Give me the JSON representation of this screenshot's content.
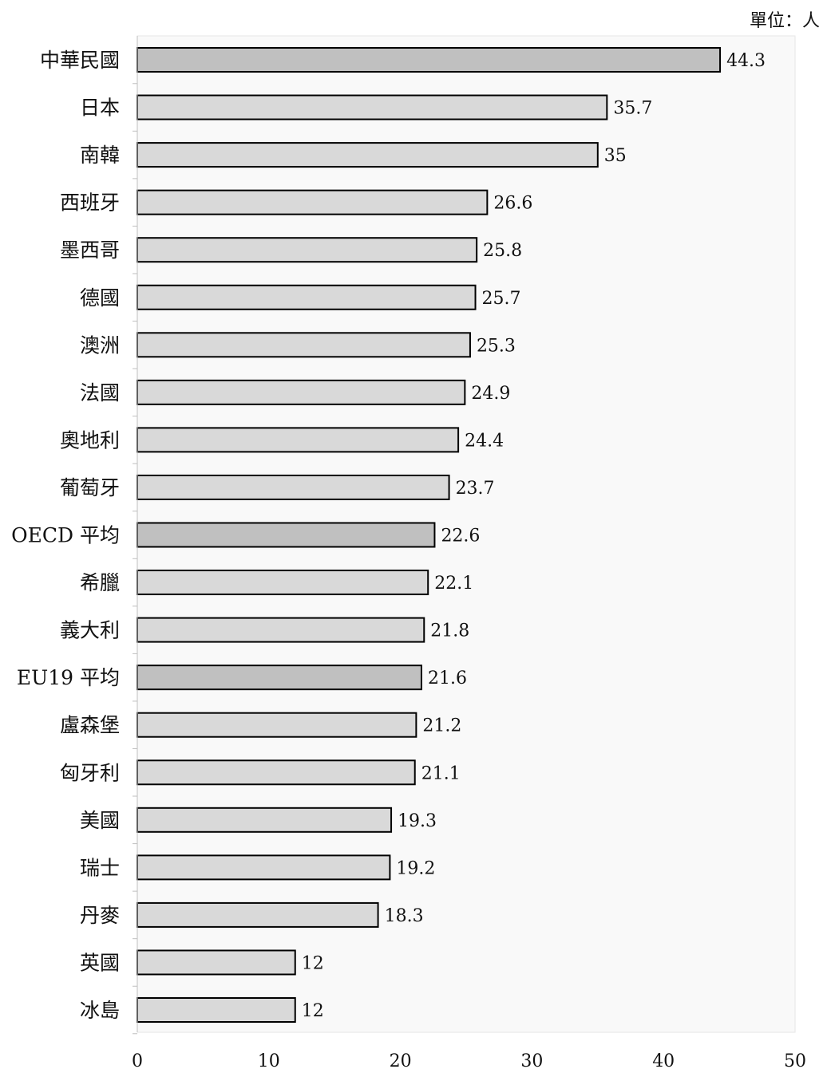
{
  "unit_label": "單位：人",
  "colors": {
    "bar": "#d9d9d9",
    "bar_highlight": "#c0c0c0",
    "bar_stroke": "#000000",
    "plot_bg": "#f9f9f9",
    "plot_border": "#e6e6e6"
  },
  "chart_data": {
    "type": "bar",
    "orientation": "horizontal",
    "unit": "單位：人",
    "categories": [
      "中華民國",
      "日本",
      "南韓",
      "西班牙",
      "墨西哥",
      "德國",
      "澳洲",
      "法國",
      "奧地利",
      "葡萄牙",
      "OECD 平均",
      "希臘",
      "義大利",
      "EU19 平均",
      "盧森堡",
      "匈牙利",
      "美國",
      "瑞士",
      "丹麥",
      "英國",
      "冰島"
    ],
    "values": [
      44.3,
      35.7,
      35,
      26.6,
      25.8,
      25.7,
      25.3,
      24.9,
      24.4,
      23.7,
      22.6,
      22.1,
      21.8,
      21.6,
      21.2,
      21.1,
      19.3,
      19.2,
      18.3,
      12,
      12
    ],
    "value_labels": [
      "44.3",
      "35.7",
      "35",
      "26.6",
      "25.8",
      "25.7",
      "25.3",
      "24.9",
      "24.4",
      "23.7",
      "22.6",
      "22.1",
      "21.8",
      "21.6",
      "21.2",
      "21.1",
      "19.3",
      "19.2",
      "18.3",
      "12",
      "12"
    ],
    "highlighted": [
      "中華民國",
      "OECD 平均",
      "EU19 平均"
    ],
    "xlim": [
      0,
      50
    ],
    "xticks": [
      0,
      10,
      20,
      30,
      40,
      50
    ],
    "xtick_labels": [
      "0",
      "10",
      "20",
      "30",
      "40",
      "50"
    ],
    "grid": false,
    "legend": "none"
  }
}
